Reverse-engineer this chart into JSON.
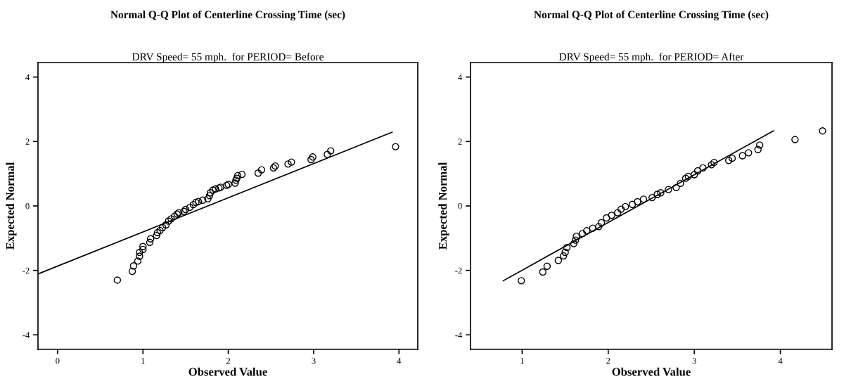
{
  "chart_data": [
    {
      "type": "scatter",
      "title": "Normal Q-Q Plot of Centerline Crossing Time (sec)",
      "subtitle": "DRV Speed= 55 mph.  for PERIOD= Before",
      "xlabel": "Observed Value",
      "ylabel": "Expected Normal",
      "xlim": [
        -0.23,
        4.22
      ],
      "ylim": [
        -4.45,
        4.45
      ],
      "xticks": [
        0,
        1,
        2,
        3,
        4
      ],
      "yticks": [
        -4,
        -2,
        0,
        2,
        4
      ],
      "series": [
        {
          "marker": "circle",
          "color": "#000000",
          "x": [
            0.7,
            0.875,
            0.89,
            0.94,
            0.96,
            0.96,
            1.0,
            1.0,
            1.08,
            1.09,
            1.16,
            1.17,
            1.2,
            1.23,
            1.27,
            1.3,
            1.33,
            1.37,
            1.4,
            1.42,
            1.48,
            1.5,
            1.55,
            1.59,
            1.62,
            1.65,
            1.7,
            1.76,
            1.78,
            1.79,
            1.82,
            1.85,
            1.89,
            1.91,
            1.98,
            2.0,
            2.08,
            2.09,
            2.1,
            2.11,
            2.16,
            2.35,
            2.39,
            2.53,
            2.55,
            2.7,
            2.74,
            2.97,
            2.99,
            3.16,
            3.2,
            3.96
          ],
          "values": [
            -2.3,
            -2.03,
            -1.86,
            -1.71,
            -1.56,
            -1.44,
            -1.35,
            -1.26,
            -1.13,
            -1.02,
            -0.92,
            -0.83,
            -0.76,
            -0.67,
            -0.59,
            -0.47,
            -0.4,
            -0.32,
            -0.25,
            -0.21,
            -0.17,
            -0.11,
            -0.04,
            0.04,
            0.11,
            0.14,
            0.18,
            0.22,
            0.32,
            0.41,
            0.49,
            0.53,
            0.56,
            0.58,
            0.64,
            0.67,
            0.71,
            0.8,
            0.86,
            0.94,
            0.98,
            1.02,
            1.12,
            1.18,
            1.24,
            1.3,
            1.36,
            1.44,
            1.52,
            1.6,
            1.71,
            1.84
          ]
        },
        {
          "type": "line",
          "marker": "none",
          "line_style": "solid",
          "color": "#000000",
          "x": [
            -0.23,
            3.92
          ],
          "values": [
            -2.11,
            2.29
          ]
        }
      ]
    },
    {
      "type": "scatter",
      "title": "Normal Q-Q Plot of Centerline Crossing Time (sec)",
      "subtitle": "DRV Speed= 55 mph.  for PERIOD= After",
      "xlabel": "Observed Value",
      "ylabel": "Expected Normal",
      "xlim": [
        0.4,
        4.6
      ],
      "ylim": [
        -4.45,
        4.45
      ],
      "xticks": [
        1,
        2,
        3,
        4
      ],
      "yticks": [
        -4,
        -2,
        0,
        2,
        4
      ],
      "series": [
        {
          "marker": "circle",
          "color": "#000000",
          "x": [
            0.99,
            1.24,
            1.29,
            1.42,
            1.48,
            1.5,
            1.52,
            1.6,
            1.62,
            1.63,
            1.7,
            1.75,
            1.82,
            1.89,
            1.92,
            1.98,
            2.04,
            2.11,
            2.15,
            2.2,
            2.28,
            2.34,
            2.41,
            2.51,
            2.57,
            2.61,
            2.7,
            2.79,
            2.84,
            2.9,
            2.93,
            3.0,
            3.04,
            3.1,
            3.2,
            3.23,
            3.4,
            3.44,
            3.56,
            3.63,
            3.74,
            3.76,
            4.17,
            4.49
          ],
          "values": [
            -2.32,
            -2.05,
            -1.87,
            -1.69,
            -1.55,
            -1.44,
            -1.29,
            -1.17,
            -1.06,
            -0.94,
            -0.86,
            -0.77,
            -0.69,
            -0.64,
            -0.52,
            -0.37,
            -0.29,
            -0.21,
            -0.1,
            -0.02,
            0.05,
            0.13,
            0.21,
            0.26,
            0.36,
            0.41,
            0.51,
            0.57,
            0.7,
            0.86,
            0.92,
            0.97,
            1.09,
            1.18,
            1.28,
            1.35,
            1.41,
            1.48,
            1.56,
            1.65,
            1.75,
            1.89,
            2.06,
            2.33
          ]
        },
        {
          "type": "line",
          "marker": "none",
          "line_style": "solid",
          "color": "#000000",
          "x": [
            0.78,
            3.92
          ],
          "values": [
            -2.32,
            2.33
          ]
        }
      ]
    }
  ]
}
